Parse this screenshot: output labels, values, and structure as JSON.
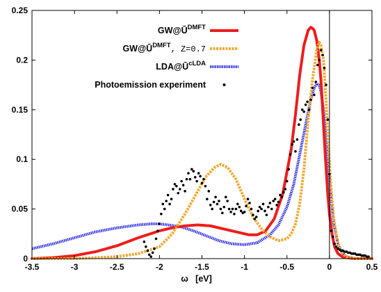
{
  "chart_data": {
    "type": "line",
    "xlabel": "ω   [eV]",
    "ylabel": "",
    "xlim": [
      -3.5,
      0.5
    ],
    "ylim": [
      0,
      0.25
    ],
    "x_ticks": [
      "-3.5",
      "-3",
      "-2.5",
      "-2",
      "-1.5",
      "-1",
      "-0.5",
      "0",
      "0.5"
    ],
    "y_ticks": [
      "0",
      "0.05",
      "0.1",
      "0.15",
      "0.2",
      "0.25"
    ],
    "vertical_line_x": 0,
    "legend_position": "top-right",
    "legend": [
      {
        "main": "GW@Ū",
        "sup": "DMFT",
        "suffix": ""
      },
      {
        "main": "GW@Ū",
        "sup": "DMFT",
        "suffix": ", Z=0.7"
      },
      {
        "main": "LDA@Ū",
        "sup": "cLDA",
        "suffix": ""
      },
      {
        "main": "Photoemission experiment",
        "sup": "",
        "suffix": ""
      }
    ],
    "colors": {
      "gw_dmft": "#ee1c1c",
      "gw_dmft_z07": "#f0a830",
      "lda_clda": "#2a2ae0",
      "experiment": "#000000"
    },
    "series": [
      {
        "key": "gw_dmft",
        "style": "solid",
        "x": [
          -3.5,
          -3.25,
          -3.0,
          -2.75,
          -2.5,
          -2.25,
          -2.0,
          -1.85,
          -1.7,
          -1.55,
          -1.4,
          -1.25,
          -1.1,
          -0.95,
          -0.85,
          -0.75,
          -0.65,
          -0.55,
          -0.45,
          -0.4,
          -0.35,
          -0.3,
          -0.25,
          -0.22,
          -0.2,
          -0.18,
          -0.15,
          -0.12,
          -0.1,
          -0.08,
          -0.05,
          -0.02,
          0.0,
          0.03,
          0.06,
          0.1,
          0.15,
          0.2,
          0.3,
          0.4,
          0.5
        ],
        "y": [
          0.0,
          0.001,
          0.003,
          0.007,
          0.013,
          0.021,
          0.028,
          0.031,
          0.033,
          0.034,
          0.033,
          0.03,
          0.027,
          0.024,
          0.024,
          0.028,
          0.04,
          0.065,
          0.11,
          0.145,
          0.185,
          0.215,
          0.23,
          0.233,
          0.232,
          0.23,
          0.22,
          0.2,
          0.18,
          0.15,
          0.105,
          0.065,
          0.045,
          0.025,
          0.012,
          0.005,
          0.002,
          0.001,
          0.0,
          0.0,
          0.0
        ]
      },
      {
        "key": "gw_dmft_z07",
        "style": "dashed",
        "x": [
          -3.5,
          -3.0,
          -2.75,
          -2.5,
          -2.25,
          -2.0,
          -1.85,
          -1.7,
          -1.55,
          -1.45,
          -1.35,
          -1.28,
          -1.2,
          -1.1,
          -1.0,
          -0.9,
          -0.8,
          -0.7,
          -0.6,
          -0.5,
          -0.45,
          -0.4,
          -0.35,
          -0.3,
          -0.25,
          -0.2,
          -0.15,
          -0.12,
          -0.1,
          -0.07,
          -0.04,
          -0.01,
          0.02,
          0.05,
          0.1,
          0.15,
          0.2,
          0.3,
          0.5
        ],
        "y": [
          0.0,
          0.0,
          0.001,
          0.002,
          0.005,
          0.012,
          0.025,
          0.045,
          0.068,
          0.083,
          0.092,
          0.095,
          0.092,
          0.08,
          0.06,
          0.042,
          0.03,
          0.022,
          0.018,
          0.02,
          0.025,
          0.035,
          0.055,
          0.09,
          0.14,
          0.18,
          0.21,
          0.218,
          0.215,
          0.2,
          0.16,
          0.11,
          0.07,
          0.04,
          0.015,
          0.005,
          0.002,
          0.0,
          0.0
        ]
      },
      {
        "key": "lda_clda",
        "style": "dotted",
        "x": [
          -3.5,
          -3.25,
          -3.0,
          -2.75,
          -2.5,
          -2.25,
          -2.1,
          -2.0,
          -1.9,
          -1.75,
          -1.6,
          -1.45,
          -1.3,
          -1.15,
          -1.0,
          -0.85,
          -0.7,
          -0.6,
          -0.5,
          -0.42,
          -0.35,
          -0.28,
          -0.22,
          -0.18,
          -0.15,
          -0.12,
          -0.1,
          -0.07,
          -0.04,
          -0.01,
          0.02,
          0.05,
          0.1,
          0.15,
          0.2,
          0.3,
          0.5
        ],
        "y": [
          0.01,
          0.015,
          0.021,
          0.027,
          0.031,
          0.034,
          0.035,
          0.035,
          0.034,
          0.032,
          0.028,
          0.023,
          0.018,
          0.015,
          0.014,
          0.016,
          0.024,
          0.034,
          0.052,
          0.075,
          0.105,
          0.135,
          0.16,
          0.172,
          0.176,
          0.175,
          0.168,
          0.15,
          0.12,
          0.09,
          0.06,
          0.035,
          0.015,
          0.006,
          0.002,
          0.0,
          0.0
        ]
      }
    ],
    "experiment_points": {
      "x": [
        -2.18,
        -2.16,
        -2.14,
        -2.12,
        -2.1,
        -2.08,
        -2.06,
        -2.04,
        -2.02,
        -2.0,
        -1.98,
        -1.96,
        -1.94,
        -1.92,
        -1.9,
        -1.88,
        -1.86,
        -1.84,
        -1.82,
        -1.8,
        -1.78,
        -1.76,
        -1.74,
        -1.72,
        -1.7,
        -1.68,
        -1.66,
        -1.64,
        -1.62,
        -1.6,
        -1.58,
        -1.56,
        -1.54,
        -1.52,
        -1.5,
        -1.48,
        -1.46,
        -1.44,
        -1.42,
        -1.4,
        -1.38,
        -1.36,
        -1.34,
        -1.32,
        -1.3,
        -1.28,
        -1.26,
        -1.24,
        -1.22,
        -1.2,
        -1.18,
        -1.16,
        -1.14,
        -1.12,
        -1.1,
        -1.08,
        -1.06,
        -1.04,
        -1.02,
        -1.0,
        -0.98,
        -0.96,
        -0.94,
        -0.92,
        -0.9,
        -0.88,
        -0.86,
        -0.84,
        -0.82,
        -0.8,
        -0.78,
        -0.76,
        -0.74,
        -0.72,
        -0.7,
        -0.68,
        -0.66,
        -0.64,
        -0.62,
        -0.6,
        -0.58,
        -0.56,
        -0.54,
        -0.52,
        -0.5,
        -0.48,
        -0.46,
        -0.44,
        -0.42,
        -0.4,
        -0.38,
        -0.36,
        -0.34,
        -0.32,
        -0.3,
        -0.28,
        -0.26,
        -0.24,
        -0.22,
        -0.2,
        -0.18,
        -0.16,
        -0.14,
        -0.12,
        -0.1,
        -0.08,
        -0.06,
        -0.04,
        -0.02,
        0.0,
        0.02,
        0.04,
        0.06,
        0.08,
        0.1,
        0.12,
        0.14,
        0.16,
        0.18,
        0.2,
        0.22,
        0.24,
        0.26,
        0.28,
        0.3,
        0.32,
        0.34,
        0.36,
        0.38,
        0.4,
        0.42,
        0.44,
        0.46
      ],
      "y": [
        0.017,
        0.012,
        0.008,
        0.004,
        0.002,
        0.006,
        0.01,
        0.02,
        0.028,
        0.035,
        0.045,
        0.055,
        0.05,
        0.058,
        0.064,
        0.055,
        0.06,
        0.07,
        0.075,
        0.073,
        0.066,
        0.07,
        0.078,
        0.074,
        0.068,
        0.08,
        0.086,
        0.08,
        0.09,
        0.088,
        0.082,
        0.078,
        0.086,
        0.083,
        0.076,
        0.08,
        0.073,
        0.06,
        0.068,
        0.054,
        0.05,
        0.057,
        0.062,
        0.055,
        0.058,
        0.05,
        0.046,
        0.052,
        0.062,
        0.058,
        0.05,
        0.047,
        0.05,
        0.045,
        0.05,
        0.055,
        0.052,
        0.048,
        0.046,
        0.047,
        0.053,
        0.06,
        0.056,
        0.05,
        0.044,
        0.04,
        0.042,
        0.048,
        0.052,
        0.05,
        0.055,
        0.048,
        0.044,
        0.052,
        0.056,
        0.05,
        0.058,
        0.06,
        0.054,
        0.057,
        0.064,
        0.062,
        0.067,
        0.07,
        0.078,
        0.09,
        0.105,
        0.115,
        0.118,
        0.108,
        0.12,
        0.135,
        0.14,
        0.15,
        0.148,
        0.155,
        0.158,
        0.15,
        0.16,
        0.172,
        0.165,
        0.178,
        0.195,
        0.2,
        0.21,
        0.205,
        0.192,
        0.175,
        0.14,
        0.085,
        0.028,
        0.022,
        0.015,
        0.012,
        0.01,
        0.009,
        0.008,
        0.008,
        0.007,
        0.007,
        0.006,
        0.006,
        0.005,
        0.005,
        0.005,
        0.004,
        0.004,
        0.004,
        0.003,
        0.003,
        0.003,
        0.002,
        0.002
      ]
    }
  }
}
